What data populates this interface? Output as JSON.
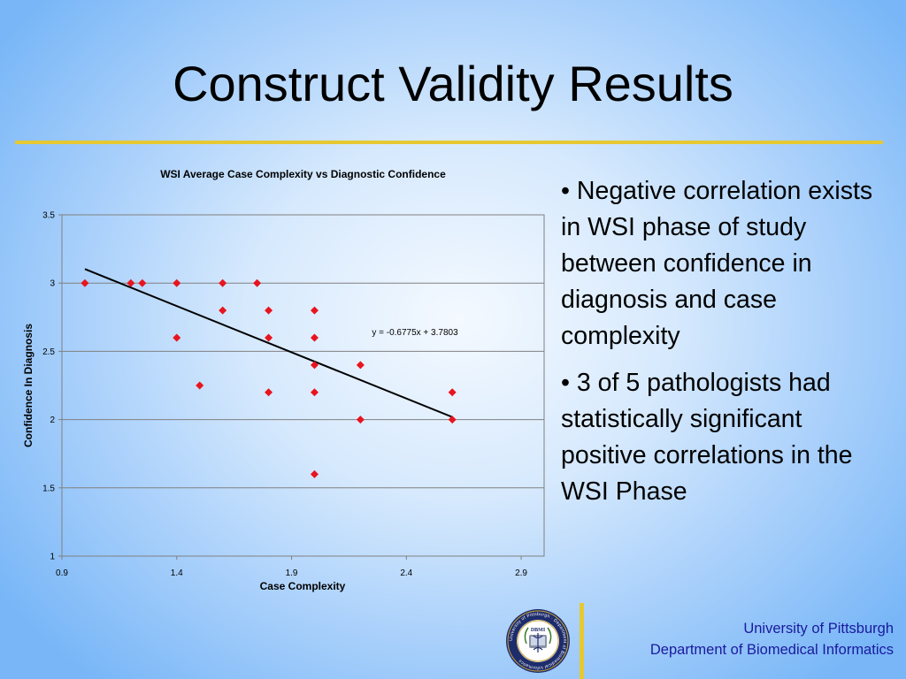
{
  "slide": {
    "title": "Construct Validity Results",
    "bullets": [
      "• Negative correlation exists in WSI phase of study between confidence in diagnosis and case complexity",
      "• 3 of 5 pathologists had statistically significant positive correlations in the WSI Phase"
    ],
    "footer": {
      "line1": "University of Pittsburgh",
      "line2": "Department of Biomedical Informatics"
    },
    "seal": {
      "ring_text": "University of Pittsburgh · Department of Biomedical Informatics",
      "center_text": "DBMI"
    },
    "colors": {
      "rule": "#e6c832",
      "footer_text": "#1a1a9e",
      "marker": "#e8141e"
    }
  },
  "chart_data": {
    "type": "scatter",
    "title": "WSI Average Case Complexity vs Diagnostic Confidence",
    "xlabel": "Case Complexity",
    "ylabel": "Confidence In Diagnosis",
    "xlim": [
      0.9,
      3.0
    ],
    "ylim": [
      1,
      3.5
    ],
    "x_ticks": [
      0.9,
      1.4,
      1.9,
      2.4,
      2.9
    ],
    "x_tick_labels": [
      "0.9",
      "1.4",
      "1.9",
      "2.4",
      "2.9"
    ],
    "y_ticks": [
      1,
      1.5,
      2,
      2.5,
      3,
      3.5
    ],
    "y_tick_labels": [
      "1",
      "1.5",
      "2",
      "2.5",
      "3",
      "3.5"
    ],
    "grid": "horizontal",
    "points": [
      {
        "x": 1.0,
        "y": 3.0
      },
      {
        "x": 1.2,
        "y": 3.0
      },
      {
        "x": 1.25,
        "y": 3.0
      },
      {
        "x": 1.4,
        "y": 3.0
      },
      {
        "x": 1.6,
        "y": 3.0
      },
      {
        "x": 1.75,
        "y": 3.0
      },
      {
        "x": 1.6,
        "y": 2.8
      },
      {
        "x": 1.8,
        "y": 2.8
      },
      {
        "x": 2.0,
        "y": 2.8
      },
      {
        "x": 1.4,
        "y": 2.6
      },
      {
        "x": 1.8,
        "y": 2.6
      },
      {
        "x": 2.0,
        "y": 2.6
      },
      {
        "x": 2.0,
        "y": 2.4
      },
      {
        "x": 2.2,
        "y": 2.4
      },
      {
        "x": 1.5,
        "y": 2.25
      },
      {
        "x": 1.8,
        "y": 2.2
      },
      {
        "x": 2.0,
        "y": 2.2
      },
      {
        "x": 2.6,
        "y": 2.2
      },
      {
        "x": 2.2,
        "y": 2.0
      },
      {
        "x": 2.6,
        "y": 2.0
      },
      {
        "x": 2.0,
        "y": 1.6
      }
    ],
    "trendline": {
      "slope": -0.6775,
      "intercept": 3.7803,
      "x_range": [
        1.0,
        2.6
      ],
      "equation_label": "y = -0.6775x + 3.7803",
      "label_at": {
        "x": 2.25,
        "y": 2.62
      }
    }
  }
}
